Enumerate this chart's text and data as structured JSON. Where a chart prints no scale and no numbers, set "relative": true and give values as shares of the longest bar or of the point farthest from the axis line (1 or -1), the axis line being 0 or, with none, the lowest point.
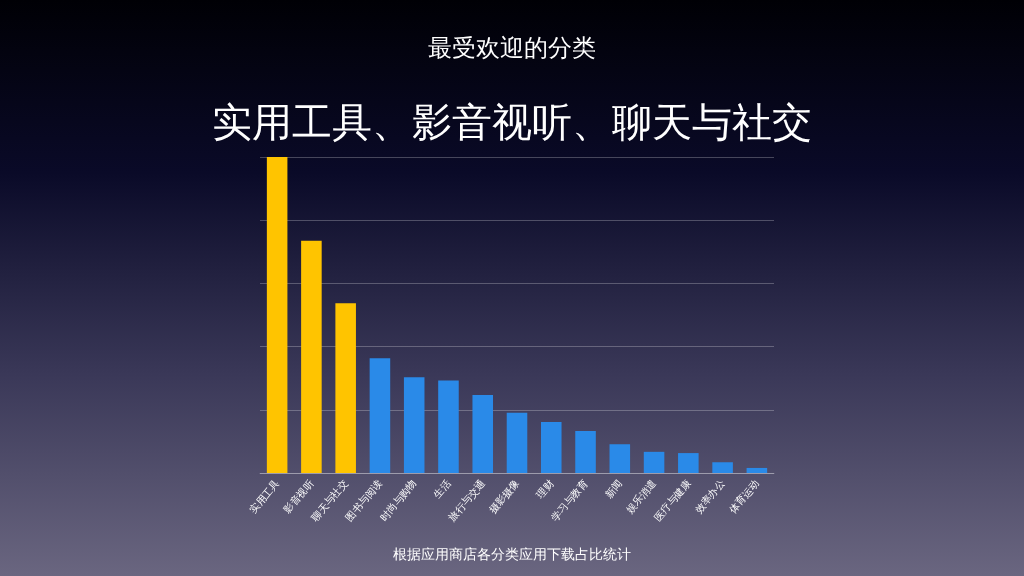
{
  "chart_data": {
    "type": "bar",
    "subtitle": "最受欢迎的分类",
    "title": "实用工具、影音视听、聊天与社交",
    "categories": [
      "实用工具",
      "影音视听",
      "聊天与社交",
      "图书与阅读",
      "时尚与购物",
      "生活",
      "旅行与交通",
      "摄影摄像",
      "理财",
      "学习与教育",
      "新闻",
      "娱乐消遣",
      "医疗与健康",
      "效率办公",
      "体育运动"
    ],
    "values": [
      1,
      0.735,
      0.537,
      0.363,
      0.303,
      0.293,
      0.247,
      0.191,
      0.161,
      0.133,
      0.091,
      0.067,
      0.063,
      0.034,
      0.016
    ],
    "colors": [
      "#ffc400",
      "#ffc400",
      "#ffc400",
      "#2a8ae8",
      "#2a8ae8",
      "#2a8ae8",
      "#2a8ae8",
      "#2a8ae8",
      "#2a8ae8",
      "#2a8ae8",
      "#2a8ae8",
      "#2a8ae8",
      "#2a8ae8",
      "#2a8ae8",
      "#2a8ae8"
    ],
    "relative": true,
    "grid": "y",
    "annotations": [
      "根据应用商店各分类应用下载占比统计"
    ]
  }
}
